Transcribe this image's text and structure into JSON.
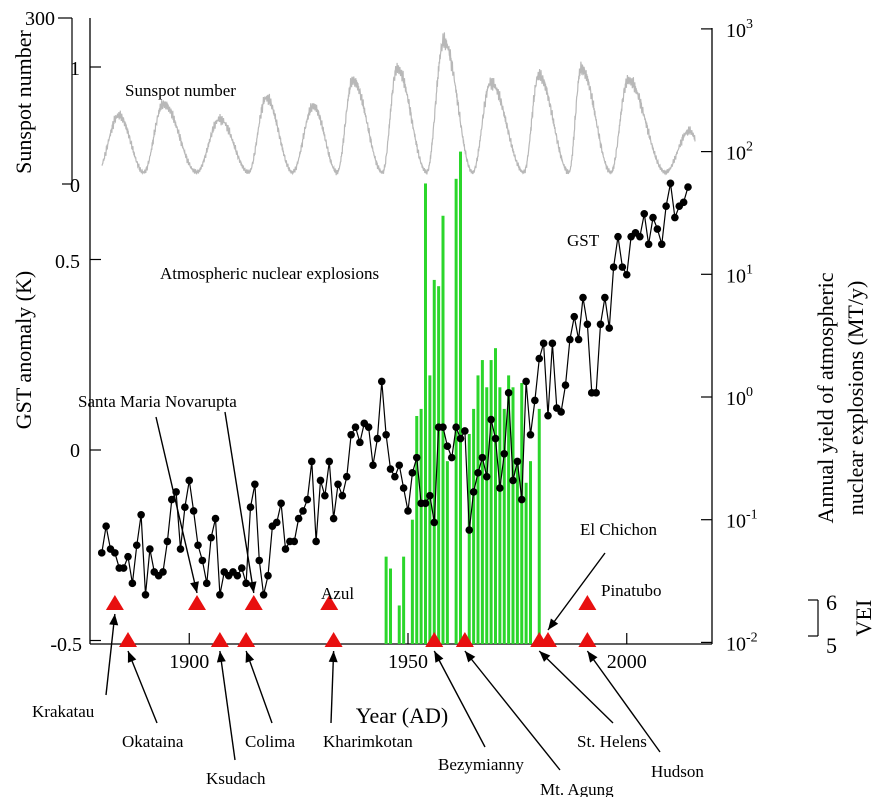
{
  "chart_data": {
    "type": "composite",
    "x_axis": {
      "label": "Year (AD)",
      "ticks": [
        1900,
        1950,
        2000
      ],
      "range": [
        1870,
        2018
      ]
    },
    "sunspot": {
      "axis_label": "Sunspot number",
      "tick_labels": [
        "300",
        "1",
        "0"
      ],
      "series_label": "Sunspot number",
      "color": "#b8b8b8",
      "cycle_maxima": [
        {
          "year": 1883.9,
          "value": 0.58
        },
        {
          "year": 1894.1,
          "value": 0.68
        },
        {
          "year": 1907.0,
          "value": 0.55
        },
        {
          "year": 1917.6,
          "value": 0.73
        },
        {
          "year": 1928.4,
          "value": 0.66
        },
        {
          "year": 1937.4,
          "value": 0.88
        },
        {
          "year": 1947.5,
          "value": 0.98
        },
        {
          "year": 1958.2,
          "value": 1.21
        },
        {
          "year": 1968.9,
          "value": 0.86
        },
        {
          "year": 1979.9,
          "value": 0.92
        },
        {
          "year": 1989.6,
          "value": 0.98
        },
        {
          "year": 2000.3,
          "value": 0.88
        },
        {
          "year": 2014.3,
          "value": 0.45
        }
      ],
      "cycle_minima": [
        1878.9,
        1889.6,
        1901.7,
        1913.6,
        1923.6,
        1933.8,
        1944.2,
        1954.3,
        1964.8,
        1976.5,
        1986.8,
        1996.4,
        2008.9
      ],
      "min_value": 0.1
    },
    "gst": {
      "axis_label": "GST anomaly (K)",
      "tick_labels": [
        "0.5",
        "0",
        "-0.5"
      ],
      "ticks": [
        0.5,
        0,
        -0.5
      ],
      "range": [
        -0.5,
        0.9
      ],
      "series_label": "GST",
      "color": "#000000",
      "x": [
        1880,
        1881,
        1882,
        1883,
        1884,
        1885,
        1886,
        1887,
        1888,
        1889,
        1890,
        1891,
        1892,
        1893,
        1894,
        1895,
        1896,
        1897,
        1898,
        1899,
        1900,
        1901,
        1902,
        1903,
        1904,
        1905,
        1906,
        1907,
        1908,
        1909,
        1910,
        1911,
        1912,
        1913,
        1914,
        1915,
        1916,
        1917,
        1918,
        1919,
        1920,
        1921,
        1922,
        1923,
        1924,
        1925,
        1926,
        1927,
        1928,
        1929,
        1930,
        1931,
        1932,
        1933,
        1934,
        1935,
        1936,
        1937,
        1938,
        1939,
        1940,
        1941,
        1942,
        1943,
        1944,
        1945,
        1946,
        1947,
        1948,
        1949,
        1950,
        1951,
        1952,
        1953,
        1954,
        1955,
        1956,
        1957,
        1958,
        1959,
        1960,
        1961,
        1962,
        1963,
        1964,
        1965,
        1966,
        1967,
        1968,
        1969,
        1970,
        1971,
        1972,
        1973,
        1974,
        1975,
        1976,
        1977,
        1978,
        1979,
        1980,
        1981,
        1982,
        1983,
        1984,
        1985,
        1986,
        1987,
        1988,
        1989,
        1990,
        1991,
        1992,
        1993,
        1994,
        1995,
        1996,
        1997,
        1998,
        1999,
        2000,
        2001,
        2002,
        2003,
        2004,
        2005,
        2006,
        2007,
        2008,
        2009,
        2010,
        2011,
        2012,
        2013,
        2014
      ],
      "y": [
        -0.27,
        -0.2,
        -0.26,
        -0.27,
        -0.31,
        -0.31,
        -0.28,
        -0.35,
        -0.25,
        -0.17,
        -0.38,
        -0.26,
        -0.32,
        -0.33,
        -0.32,
        -0.24,
        -0.13,
        -0.11,
        -0.26,
        -0.15,
        -0.08,
        -0.16,
        -0.25,
        -0.29,
        -0.35,
        -0.23,
        -0.18,
        -0.38,
        -0.32,
        -0.33,
        -0.32,
        -0.33,
        -0.31,
        -0.35,
        -0.15,
        -0.09,
        -0.29,
        -0.38,
        -0.33,
        -0.2,
        -0.19,
        -0.14,
        -0.26,
        -0.24,
        -0.24,
        -0.18,
        -0.16,
        -0.13,
        -0.03,
        -0.24,
        -0.08,
        -0.12,
        -0.03,
        -0.18,
        -0.09,
        -0.12,
        -0.07,
        0.04,
        0.06,
        0.02,
        0.07,
        0.06,
        -0.04,
        0.03,
        0.18,
        0.04,
        -0.05,
        -0.07,
        -0.04,
        -0.1,
        -0.16,
        -0.06,
        -0.02,
        -0.14,
        -0.14,
        -0.12,
        -0.19,
        0.06,
        0.06,
        0.01,
        -0.02,
        0.06,
        0.03,
        0.05,
        -0.21,
        -0.11,
        -0.06,
        -0.02,
        -0.07,
        0.08,
        0.03,
        -0.1,
        -0.01,
        0.15,
        -0.08,
        -0.03,
        -0.13,
        0.18,
        0.04,
        0.13,
        0.24,
        0.28,
        0.09,
        0.28,
        0.11,
        0.1,
        0.17,
        0.29,
        0.35,
        0.29,
        0.4,
        0.33,
        0.15,
        0.15,
        0.33,
        0.4,
        0.32,
        0.48,
        0.56,
        0.48,
        0.46,
        0.56,
        0.57,
        0.56,
        0.62,
        0.54,
        0.61,
        0.58,
        0.54,
        0.64,
        0.7,
        0.61,
        0.64,
        0.65,
        0.69
      ]
    },
    "nuclear": {
      "axis_label_line1": "Annual yield of atmospheric",
      "axis_label_line2": "nuclear explosions (MT/y)",
      "series_label": "Atmospheric nuclear explosions",
      "color": "#2bd62b",
      "log_scale": true,
      "range": [
        0.01,
        1000
      ],
      "tick_labels": [
        {
          "base": "10",
          "exp": "3",
          "value": 1000
        },
        {
          "base": "10",
          "exp": "2",
          "value": 100
        },
        {
          "base": "10",
          "exp": "1",
          "value": 10
        },
        {
          "base": "10",
          "exp": "0",
          "value": 1
        },
        {
          "base": "10",
          "exp": "-1",
          "value": 0.1
        },
        {
          "base": "10",
          "exp": "-2",
          "value": 0.01
        }
      ],
      "bars": [
        {
          "year": 1945,
          "value": 0.05
        },
        {
          "year": 1946,
          "value": 0.04
        },
        {
          "year": 1948,
          "value": 0.02
        },
        {
          "year": 1949,
          "value": 0.05
        },
        {
          "year": 1951,
          "value": 0.1
        },
        {
          "year": 1952,
          "value": 0.7
        },
        {
          "year": 1953,
          "value": 0.8
        },
        {
          "year": 1954,
          "value": 55
        },
        {
          "year": 1955,
          "value": 1.5
        },
        {
          "year": 1956,
          "value": 9
        },
        {
          "year": 1957,
          "value": 8
        },
        {
          "year": 1958,
          "value": 30
        },
        {
          "year": 1959,
          "value": 0.3
        },
        {
          "year": 1961,
          "value": 60
        },
        {
          "year": 1962,
          "value": 100
        },
        {
          "year": 1964,
          "value": 0.5
        },
        {
          "year": 1965,
          "value": 0.8
        },
        {
          "year": 1966,
          "value": 1.5
        },
        {
          "year": 1967,
          "value": 2
        },
        {
          "year": 1968,
          "value": 1.2
        },
        {
          "year": 1969,
          "value": 2
        },
        {
          "year": 1970,
          "value": 2.5
        },
        {
          "year": 1971,
          "value": 1.2
        },
        {
          "year": 1972,
          "value": 0.8
        },
        {
          "year": 1973,
          "value": 1.5
        },
        {
          "year": 1974,
          "value": 1.2
        },
        {
          "year": 1975,
          "value": 0.3
        },
        {
          "year": 1976,
          "value": 1.3
        },
        {
          "year": 1977,
          "value": 0.2
        },
        {
          "year": 1978,
          "value": 0.3
        },
        {
          "year": 1980,
          "value": 0.8
        }
      ]
    },
    "vei": {
      "axis_label": "VEI",
      "tick_labels": [
        "6",
        "5"
      ],
      "marker_color": "#e81010",
      "volcanoes": [
        {
          "name": "Krakatau",
          "year": 1883,
          "vei": 6
        },
        {
          "name": "Okataina",
          "year": 1886,
          "vei": 5
        },
        {
          "name": "Santa Maria",
          "year": 1902,
          "vei": 6
        },
        {
          "name": "Ksudach",
          "year": 1907,
          "vei": 5
        },
        {
          "name": "Novarupta",
          "year": 1912,
          "vei": 6
        },
        {
          "name": "Colima",
          "year": 1913,
          "vei": 5
        },
        {
          "name": "Azul",
          "year": 1932,
          "vei": 6
        },
        {
          "name": "Kharimkotan",
          "year": 1933,
          "vei": 5
        },
        {
          "name": "Bezymianny",
          "year": 1956,
          "vei": 5
        },
        {
          "name": "Mt. Agung",
          "year": 1963,
          "vei": 5
        },
        {
          "name": "St. Helens",
          "year": 1980,
          "vei": 5
        },
        {
          "name": "El Chichon",
          "year": 1982,
          "vei": 5
        },
        {
          "name": "Pinatubo",
          "year": 1991,
          "vei": 6
        },
        {
          "name": "Hudson",
          "year": 1991,
          "vei": 5
        }
      ]
    }
  }
}
